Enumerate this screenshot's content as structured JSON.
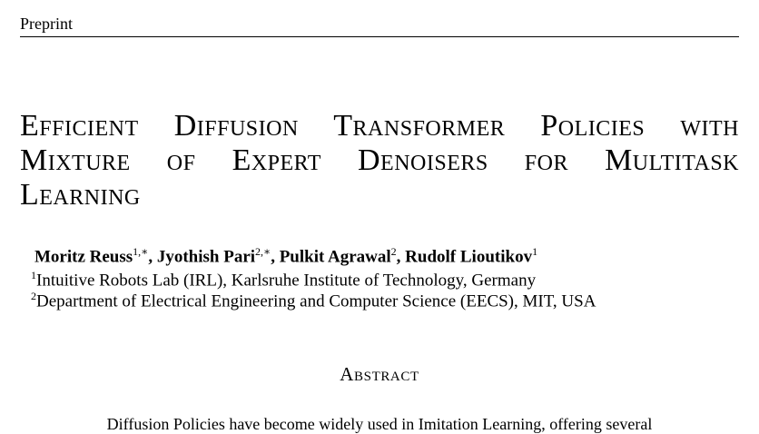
{
  "header": {
    "running_title": "Preprint"
  },
  "paper": {
    "title_lines": [
      "Efficient Diffusion Transformer Policies with",
      "Mixture of Expert Denoisers for Multitask",
      "Learning"
    ],
    "authors": [
      {
        "name": "Moritz Reuss",
        "mark": "1,∗",
        "sep": ", "
      },
      {
        "name": "Jyothish Pari",
        "mark": "2,∗",
        "sep": ", "
      },
      {
        "name": "Pulkit Agrawal",
        "mark": "2",
        "sep": ", "
      },
      {
        "name": "Rudolf Lioutikov",
        "mark": "1",
        "sep": ""
      }
    ],
    "affiliations": [
      {
        "mark": "1",
        "text": "Intuitive Robots Lab (IRL), Karlsruhe Institute of Technology, Germany"
      },
      {
        "mark": "2",
        "text": "Department of Electrical Engineering and Computer Science (EECS), MIT, USA"
      }
    ],
    "abstract_heading": "Abstract",
    "abstract_first_line": "Diffusion Policies have become widely used in Imitation Learning, offering several"
  }
}
